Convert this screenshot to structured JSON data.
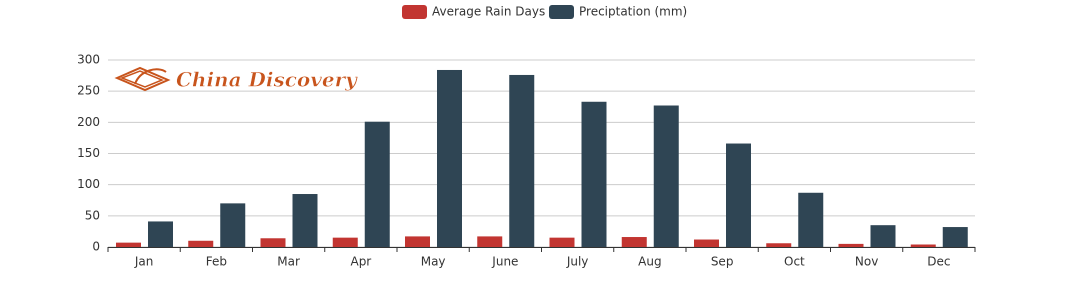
{
  "chart_data": {
    "type": "bar",
    "watermark": "China Discovery",
    "categories": [
      "Jan",
      "Feb",
      "Mar",
      "Apr",
      "May",
      "June",
      "July",
      "Aug",
      "Sep",
      "Oct",
      "Nov",
      "Dec"
    ],
    "series": [
      {
        "name": "Average Rain Days",
        "color": "#c23531",
        "values": [
          7,
          10,
          14,
          15,
          17,
          17,
          15,
          16,
          12,
          6,
          5,
          4
        ]
      },
      {
        "name": "Preciptation (mm)",
        "color": "#2f4554",
        "values": [
          41,
          70,
          85,
          201,
          284,
          276,
          233,
          227,
          166,
          87,
          35,
          32
        ]
      }
    ],
    "ylim": [
      0,
      300
    ],
    "yticks": [
      0,
      50,
      100,
      150,
      200,
      250,
      300
    ],
    "grid": true,
    "legend": "top"
  }
}
